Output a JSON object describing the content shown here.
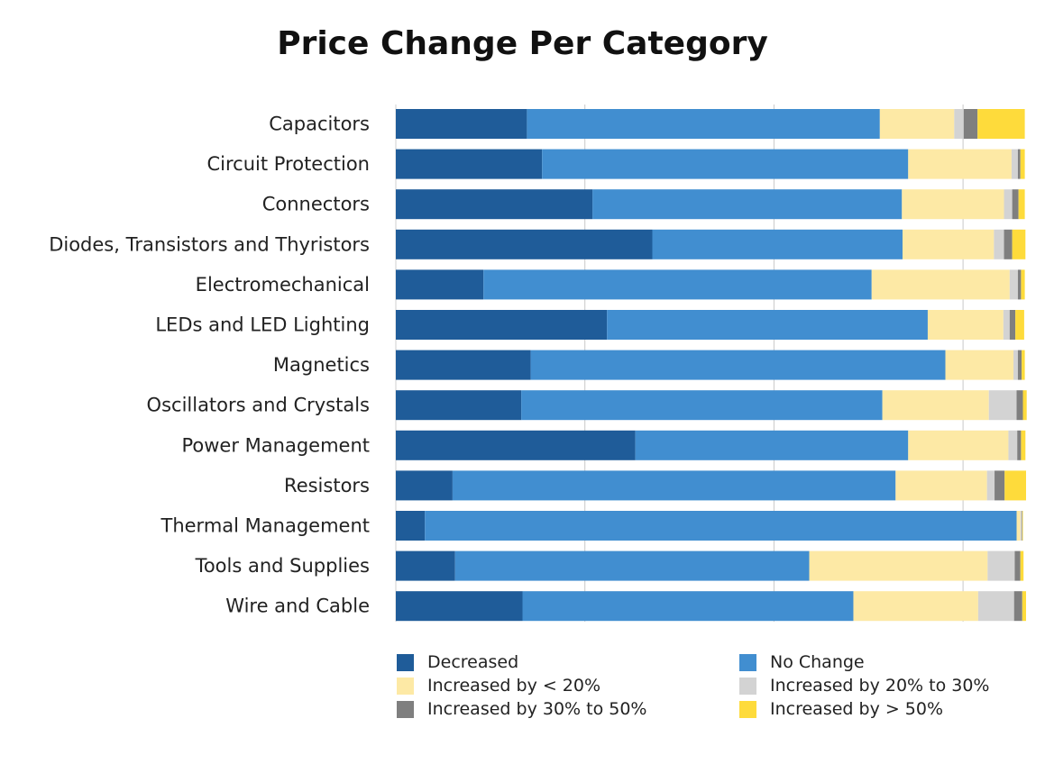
{
  "chart_data": {
    "type": "bar",
    "orientation": "horizontal",
    "stacked": true,
    "title": "Price Change Per Category",
    "xlabel": "",
    "ylabel": "",
    "xlim": [
      0,
      100
    ],
    "grid": true,
    "legend_position": "bottom",
    "categories": [
      "Capacitors",
      "Circuit Protection",
      "Connectors",
      "Diodes, Transistors and Thyristors",
      "Electromechanical",
      "LEDs and LED Lighting",
      "Magnetics",
      "Oscillators and Crystals",
      "Power Management",
      "Resistors",
      "Thermal Management",
      "Tools and Supplies",
      "Wire and Cable"
    ],
    "series": [
      {
        "name": "Decreased",
        "color": "#1f5c99",
        "values": [
          20.8,
          23.2,
          31.2,
          40.7,
          13.9,
          33.5,
          21.4,
          19.9,
          38.0,
          9.0,
          4.6,
          9.4,
          20.1
        ]
      },
      {
        "name": "No Change",
        "color": "#418ed0",
        "values": [
          56.0,
          58.1,
          49.1,
          39.7,
          61.6,
          50.9,
          65.8,
          57.3,
          43.3,
          70.3,
          93.9,
          56.2,
          52.5
        ]
      },
      {
        "name": "Increased by < 20%",
        "color": "#fde9a5",
        "values": [
          11.8,
          16.4,
          16.2,
          14.5,
          21.9,
          12.0,
          10.8,
          16.9,
          15.9,
          14.5,
          0.6,
          28.3,
          19.8
        ]
      },
      {
        "name": "Increased by 20% to 30%",
        "color": "#d3d3d3",
        "values": [
          1.5,
          1.0,
          1.3,
          1.6,
          1.3,
          1.0,
          0.7,
          4.4,
          1.4,
          1.2,
          0.2,
          4.3,
          5.7
        ]
      },
      {
        "name": "Increased by 30% to 50%",
        "color": "#7f7f7f",
        "values": [
          2.2,
          0.4,
          1.0,
          1.3,
          0.5,
          0.9,
          0.6,
          1.0,
          0.6,
          1.6,
          0.1,
          0.9,
          1.3
        ]
      },
      {
        "name": "Increased by > 50%",
        "color": "#fedb3b",
        "values": [
          7.5,
          0.7,
          1.0,
          2.1,
          0.6,
          1.4,
          0.5,
          0.6,
          0.7,
          3.4,
          0.1,
          0.5,
          0.6
        ]
      }
    ]
  }
}
